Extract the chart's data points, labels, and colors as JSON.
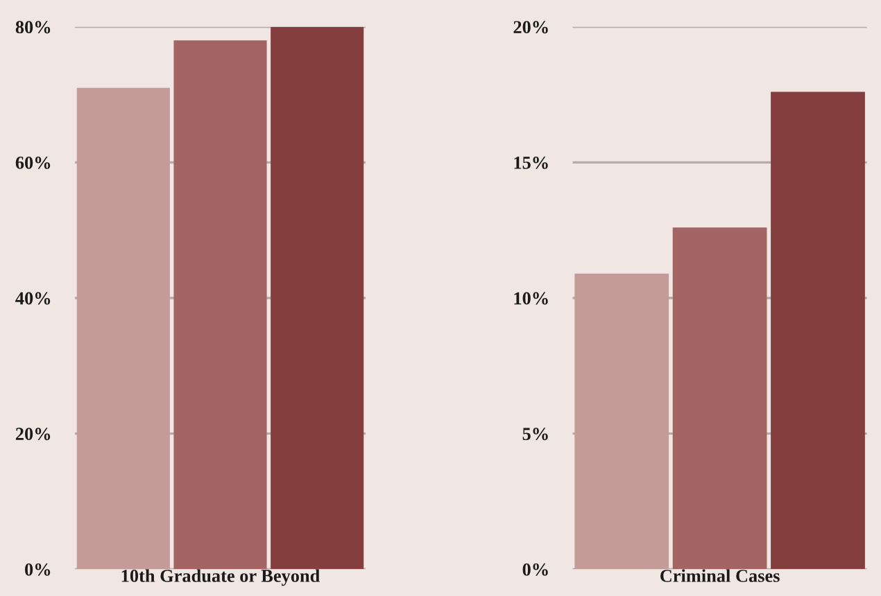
{
  "chart_data": [
    {
      "type": "bar",
      "categories": [
        null,
        null,
        null
      ],
      "xlabel": "10th Graduate or Beyond",
      "values": [
        71,
        78,
        80
      ],
      "colors": [
        "#c49b99",
        "#a36564",
        "#843e3e"
      ],
      "ylim": [
        0,
        80
      ],
      "yticks": [
        {
          "value": 0,
          "label": "0%"
        },
        {
          "value": 20,
          "label": "20%"
        },
        {
          "value": 40,
          "label": "40%"
        },
        {
          "value": 60,
          "label": "60%"
        },
        {
          "value": 80,
          "label": "80%"
        }
      ],
      "grid": "y"
    },
    {
      "type": "bar",
      "categories": [
        null,
        null,
        null
      ],
      "xlabel": "Criminal Cases",
      "values": [
        10.9,
        12.6,
        17.6
      ],
      "colors": [
        "#c49b99",
        "#a36564",
        "#843e3e"
      ],
      "ylim": [
        0,
        20
      ],
      "yticks": [
        {
          "value": 0,
          "label": "0%"
        },
        {
          "value": 5,
          "label": "5%"
        },
        {
          "value": 10,
          "label": "10%"
        },
        {
          "value": 15,
          "label": "15%"
        },
        {
          "value": 20,
          "label": "20%"
        }
      ],
      "grid": "y"
    }
  ]
}
